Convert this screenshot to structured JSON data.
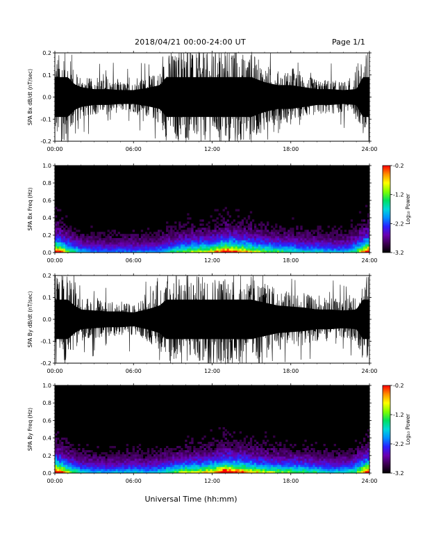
{
  "header": {
    "title": "2018/04/21   00:00-24:00 UT",
    "page": "Page 1/1"
  },
  "colors": {
    "background": "#ffffff",
    "plot_fill": "#000000",
    "colormap": [
      "#000000",
      "#3a004e",
      "#6a00b0",
      "#2a20ff",
      "#0090ff",
      "#00d8d8",
      "#00e060",
      "#80ff00",
      "#ffff00",
      "#ff9000",
      "#ff0000"
    ]
  },
  "chart_data": [
    {
      "type": "line",
      "name": "bx-waveform",
      "ylabel": "SPA Bx dB/dt (nT/sec)",
      "ylim": [
        -0.2,
        0.2
      ],
      "yticks": [
        "0.2",
        "0.1",
        "0.0",
        "-0.1",
        "-0.2"
      ],
      "ytick_values": [
        0.2,
        0.1,
        0.0,
        -0.1,
        -0.2
      ],
      "xlim": [
        0,
        24
      ],
      "xticks": [
        "00:00",
        "06:00",
        "12:00",
        "18:00",
        "24:00"
      ],
      "xtick_values": [
        0,
        6,
        12,
        18,
        24
      ],
      "envelope_hours": [
        0,
        1,
        1.5,
        2,
        3,
        4,
        5,
        6,
        7,
        8,
        8.5,
        9,
        10,
        11,
        12,
        13,
        14,
        15,
        16,
        17,
        18,
        19,
        20,
        21,
        22,
        23,
        23.5,
        24
      ],
      "envelope_amplitude": [
        0.2,
        0.2,
        0.13,
        0.1,
        0.08,
        0.08,
        0.07,
        0.07,
        0.09,
        0.12,
        0.2,
        0.2,
        0.2,
        0.2,
        0.2,
        0.2,
        0.2,
        0.2,
        0.15,
        0.12,
        0.12,
        0.1,
        0.08,
        0.08,
        0.07,
        0.08,
        0.2,
        0.2
      ]
    },
    {
      "type": "heatmap",
      "name": "bx-spectrogram",
      "ylabel": "SPA Bx Freq (Hz)",
      "ylim": [
        0,
        1.0
      ],
      "yticks": [
        "1.0",
        "0.8",
        "0.6",
        "0.4",
        "0.2",
        "0.0"
      ],
      "ytick_values": [
        1.0,
        0.8,
        0.6,
        0.4,
        0.2,
        0.0
      ],
      "xlim": [
        0,
        24
      ],
      "xticks": [
        "00:00",
        "06:00",
        "12:00",
        "18:00",
        "24:00"
      ],
      "xtick_values": [
        0,
        6,
        12,
        18,
        24
      ],
      "colorbar_label": "Log₁₀ Power",
      "colorbar_range": [
        -3.2,
        -0.2
      ],
      "colorbar_ticks": [
        "-0.2",
        "-1.2",
        "-2.2",
        "-3.2"
      ],
      "colorbar_tick_values": [
        -0.2,
        -1.2,
        -2.2,
        -3.2
      ],
      "activity_hours": [
        0,
        1,
        2,
        3,
        4,
        5,
        6,
        7,
        8,
        9,
        10,
        11,
        12,
        13,
        14,
        15,
        16,
        17,
        18,
        19,
        20,
        21,
        22,
        23,
        24
      ],
      "activity_level": [
        0.9,
        0.55,
        0.35,
        0.3,
        0.3,
        0.3,
        0.3,
        0.3,
        0.35,
        0.45,
        0.55,
        0.6,
        0.65,
        0.85,
        0.75,
        0.65,
        0.55,
        0.5,
        0.45,
        0.4,
        0.4,
        0.35,
        0.35,
        0.5,
        0.95
      ]
    },
    {
      "type": "line",
      "name": "by-waveform",
      "ylabel": "SPA By dB/dt (nT/sec)",
      "ylim": [
        -0.2,
        0.2
      ],
      "yticks": [
        "0.2",
        "0.1",
        "0.0",
        "-0.1",
        "-0.2"
      ],
      "ytick_values": [
        0.2,
        0.1,
        0.0,
        -0.1,
        -0.2
      ],
      "xlim": [
        0,
        24
      ],
      "xticks": [
        "00:00",
        "06:00",
        "12:00",
        "18:00",
        "24:00"
      ],
      "xtick_values": [
        0,
        6,
        12,
        18,
        24
      ],
      "envelope_hours": [
        0,
        1,
        1.5,
        2,
        3,
        4,
        5,
        6,
        7,
        8,
        8.5,
        9,
        10,
        11,
        12,
        13,
        14,
        15,
        16,
        17,
        18,
        19,
        20,
        21,
        22,
        23,
        23.5,
        24
      ],
      "envelope_amplitude": [
        0.2,
        0.2,
        0.14,
        0.1,
        0.09,
        0.08,
        0.08,
        0.07,
        0.1,
        0.14,
        0.2,
        0.2,
        0.2,
        0.2,
        0.2,
        0.2,
        0.2,
        0.2,
        0.17,
        0.14,
        0.13,
        0.12,
        0.1,
        0.1,
        0.09,
        0.1,
        0.2,
        0.2
      ]
    },
    {
      "type": "heatmap",
      "name": "by-spectrogram",
      "ylabel": "SPA By Freq (Hz)",
      "ylim": [
        0,
        1.0
      ],
      "yticks": [
        "1.0",
        "0.8",
        "0.6",
        "0.4",
        "0.2",
        "0.0"
      ],
      "ytick_values": [
        1.0,
        0.8,
        0.6,
        0.4,
        0.2,
        0.0
      ],
      "xlim": [
        0,
        24
      ],
      "xticks": [
        "00:00",
        "06:00",
        "12:00",
        "18:00",
        "24:00"
      ],
      "xtick_values": [
        0,
        6,
        12,
        18,
        24
      ],
      "xlabel": "Universal Time (hh:mm)",
      "colorbar_label": "Log₁₀ Power",
      "colorbar_range": [
        -3.2,
        -0.2
      ],
      "colorbar_ticks": [
        "-0.2",
        "-1.2",
        "-2.2",
        "-3.2"
      ],
      "colorbar_tick_values": [
        -0.2,
        -1.2,
        -2.2,
        -3.2
      ],
      "activity_hours": [
        0,
        1,
        2,
        3,
        4,
        5,
        6,
        7,
        8,
        9,
        10,
        11,
        12,
        13,
        14,
        15,
        16,
        17,
        18,
        19,
        20,
        21,
        22,
        23,
        24
      ],
      "activity_level": [
        0.95,
        0.6,
        0.4,
        0.35,
        0.35,
        0.35,
        0.4,
        0.35,
        0.4,
        0.5,
        0.6,
        0.6,
        0.7,
        0.9,
        0.8,
        0.7,
        0.6,
        0.55,
        0.55,
        0.5,
        0.45,
        0.4,
        0.4,
        0.5,
        0.95
      ]
    }
  ]
}
